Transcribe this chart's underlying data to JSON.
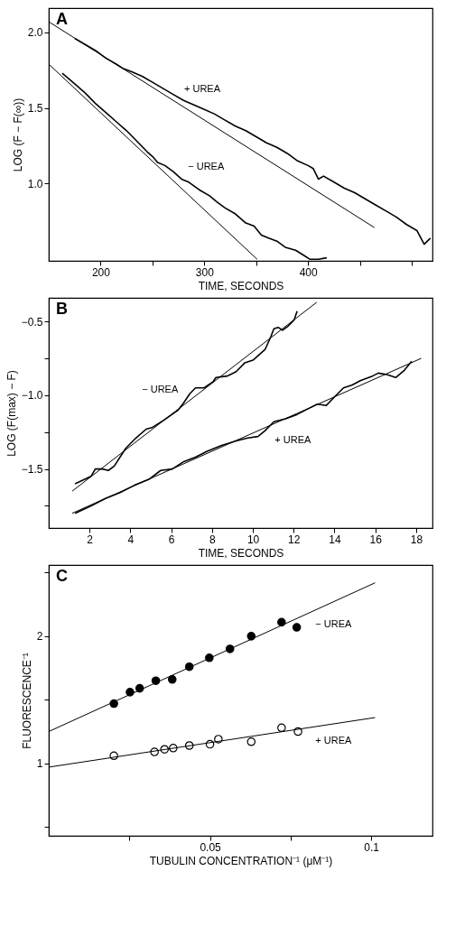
{
  "chart_data": [
    {
      "type": "line",
      "title": "A",
      "xlabel": "TIME, SECONDS",
      "ylabel": "LOG (F − F(∞))",
      "xlim": [
        150,
        520
      ],
      "ylim": [
        0.49,
        2.16
      ],
      "xticks": [
        200,
        {
          "value": 250,
          "label": null
        },
        300,
        {
          "value": 350,
          "label": null
        },
        400,
        {
          "value": 450,
          "label": null
        },
        {
          "value": 500,
          "label": null
        }
      ],
      "yticks": [
        {
          "value": 1.0,
          "label": "1.0"
        },
        {
          "value": 1.5,
          "label": "1.5"
        },
        {
          "value": 2.0,
          "label": "2.0"
        }
      ],
      "grid": false,
      "line_style": "solid",
      "annotations": [
        "+ UREA",
        "− UREA"
      ],
      "series": [
        {
          "color": "#000000",
          "x": [
            175,
            185,
            195,
            205,
            215,
            222,
            230,
            240,
            250,
            260,
            270,
            280,
            290,
            300,
            310,
            320,
            330,
            340,
            350,
            360,
            370,
            380,
            390,
            400,
            405,
            410,
            415,
            425,
            435,
            445,
            455,
            465,
            475,
            485,
            495,
            505,
            512,
            518
          ],
          "values": [
            1.96,
            1.92,
            1.88,
            1.83,
            1.79,
            1.76,
            1.74,
            1.71,
            1.67,
            1.63,
            1.59,
            1.55,
            1.52,
            1.49,
            1.46,
            1.42,
            1.38,
            1.35,
            1.31,
            1.27,
            1.24,
            1.2,
            1.15,
            1.12,
            1.1,
            1.03,
            1.05,
            1.01,
            0.97,
            0.94,
            0.9,
            0.86,
            0.82,
            0.78,
            0.73,
            0.69,
            0.6,
            0.64
          ]
        },
        {
          "color": "#000000",
          "x": [
            163,
            175,
            185,
            195,
            205,
            215,
            225,
            235,
            245,
            250,
            255,
            262,
            270,
            278,
            285,
            295,
            305,
            312,
            320,
            330,
            340,
            348,
            355,
            362,
            370,
            378,
            388,
            395,
            402,
            410,
            418
          ],
          "values": [
            1.73,
            1.66,
            1.6,
            1.53,
            1.47,
            1.41,
            1.35,
            1.28,
            1.21,
            1.18,
            1.14,
            1.12,
            1.08,
            1.03,
            1.01,
            0.96,
            0.92,
            0.88,
            0.84,
            0.8,
            0.74,
            0.72,
            0.66,
            0.64,
            0.62,
            0.58,
            0.56,
            0.53,
            0.5,
            0.5,
            0.51
          ]
        },
        {
          "type": "line",
          "color": "#000000",
          "x": [
            150,
            464
          ],
          "values": [
            2.07,
            0.71
          ]
        },
        {
          "type": "line",
          "color": "#000000",
          "x": [
            150,
            351
          ],
          "values": [
            1.79,
            0.5
          ]
        }
      ]
    },
    {
      "type": "line",
      "title": "B",
      "xlabel": "TIME, SECONDS",
      "ylabel": "LOG (F(max) − F)",
      "xlim": [
        0,
        18.8
      ],
      "ylim": [
        -1.9,
        -0.34
      ],
      "xticks": [
        2,
        4,
        6,
        8,
        10,
        12,
        14,
        16,
        18
      ],
      "yticks": [
        {
          "value": -1.75,
          "label": null
        },
        {
          "value": -1.5,
          "label": "−1.5"
        },
        {
          "value": -1.25,
          "label": null
        },
        {
          "value": -1.0,
          "label": "−1.0"
        },
        {
          "value": -0.75,
          "label": null
        },
        {
          "value": -0.5,
          "label": "−0.5"
        }
      ],
      "grid": false,
      "line_style": "solid",
      "annotations": [
        "− UREA",
        "+ UREA"
      ],
      "series": [
        {
          "color": "#000000",
          "x": [
            1.29,
            2.07,
            2.28,
            2.64,
            2.92,
            3.21,
            3.77,
            4.27,
            4.77,
            5.05,
            5.63,
            6.34,
            6.62,
            6.91,
            7.19,
            7.61,
            8.04,
            8.19,
            8.75,
            9.18,
            9.61,
            10.03,
            10.6,
            10.89,
            11.03,
            11.24,
            11.45,
            11.74,
            12.02,
            12.17
          ],
          "values": [
            -1.6,
            -1.55,
            -1.5,
            -1.5,
            -1.51,
            -1.48,
            -1.36,
            -1.29,
            -1.23,
            -1.22,
            -1.17,
            -1.1,
            -1.05,
            -0.99,
            -0.95,
            -0.95,
            -0.91,
            -0.88,
            -0.87,
            -0.84,
            -0.78,
            -0.76,
            -0.69,
            -0.6,
            -0.55,
            -0.54,
            -0.56,
            -0.53,
            -0.49,
            -0.43
          ]
        },
        {
          "color": "#000000",
          "x": [
            1.29,
            2.07,
            2.78,
            3.49,
            4.2,
            4.91,
            5.48,
            6.05,
            6.62,
            7.19,
            7.76,
            8.47,
            9.18,
            9.75,
            10.25,
            10.6,
            11.03,
            11.6,
            12.17,
            12.73,
            13.16,
            13.59,
            14.01,
            14.44,
            14.87,
            15.29,
            15.86,
            16.15,
            16.57,
            17.0,
            17.43,
            17.78
          ],
          "values": [
            -1.8,
            -1.75,
            -1.7,
            -1.66,
            -1.61,
            -1.57,
            -1.51,
            -1.5,
            -1.45,
            -1.42,
            -1.38,
            -1.34,
            -1.31,
            -1.29,
            -1.28,
            -1.24,
            -1.18,
            -1.16,
            -1.13,
            -1.09,
            -1.06,
            -1.07,
            -1.01,
            -0.95,
            -0.93,
            -0.9,
            -0.87,
            -0.85,
            -0.86,
            -0.88,
            -0.83,
            -0.77
          ]
        },
        {
          "type": "line",
          "color": "#000000",
          "x": [
            1.15,
            13.13
          ],
          "values": [
            -1.65,
            -0.37
          ]
        },
        {
          "type": "line",
          "color": "#000000",
          "x": [
            1.15,
            18.25
          ],
          "values": [
            -1.8,
            -0.75
          ]
        }
      ]
    },
    {
      "type": "scatter",
      "title": "C",
      "xlabel": "TUBULIN CONCENTRATION⁻¹ (μM⁻¹)",
      "ylabel": "FLUORESCENCE⁻¹",
      "xlim": [
        0,
        0.119
      ],
      "ylim": [
        0.43,
        2.56
      ],
      "xticks": [
        {
          "value": 0.025,
          "label": null
        },
        0.05,
        {
          "value": 0.075,
          "label": null
        },
        {
          "value": 0.1,
          "label": "0.1"
        }
      ],
      "yticks": [
        {
          "value": 0.5,
          "label": null
        },
        {
          "value": 1,
          "label": "1"
        },
        {
          "value": 1.5,
          "label": null
        },
        {
          "value": 2,
          "label": "2"
        },
        {
          "value": 2.5,
          "label": null
        }
      ],
      "grid": false,
      "marker": "circle",
      "line_style": "solid",
      "annotations": [
        "− UREA",
        "+ UREA"
      ],
      "series": [
        {
          "color": "#000000",
          "x": [
            0.0202,
            0.0252,
            0.0282,
            0.0332,
            0.0383,
            0.0436,
            0.0498,
            0.0562,
            0.0628,
            0.0722,
            0.0769
          ],
          "values": [
            1.47,
            1.56,
            1.59,
            1.65,
            1.66,
            1.76,
            1.83,
            1.9,
            2.0,
            2.11,
            2.07
          ]
        },
        {
          "color": "#ffffff",
          "x": [
            0.0202,
            0.0328,
            0.0359,
            0.0386,
            0.0436,
            0.05,
            0.0526,
            0.0628,
            0.0722,
            0.0773
          ],
          "values": [
            1.06,
            1.09,
            1.11,
            1.12,
            1.14,
            1.15,
            1.19,
            1.17,
            1.28,
            1.25
          ]
        },
        {
          "type": "line",
          "marker": "none",
          "color": "#000000",
          "x": [
            0,
            0.1012
          ],
          "values": [
            1.25,
            2.42
          ]
        },
        {
          "type": "line",
          "marker": "none",
          "color": "#000000",
          "x": [
            0,
            0.1012
          ],
          "values": [
            0.97,
            1.36
          ]
        }
      ]
    }
  ]
}
